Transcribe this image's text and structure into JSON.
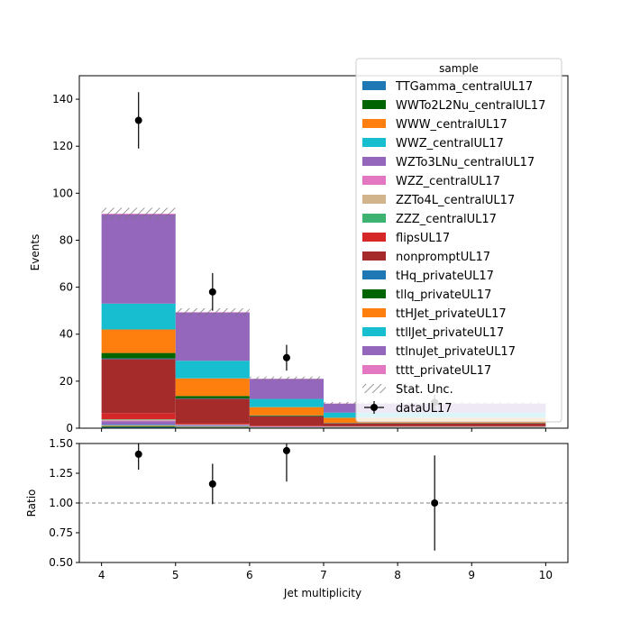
{
  "chart_data": {
    "type": "bar",
    "stacked": true,
    "xlabel": "Jet multiplicity",
    "ylabel": "Events",
    "ratio_ylabel": "Ratio",
    "xlim": [
      3.7,
      10.3
    ],
    "ylim": [
      0,
      150
    ],
    "ratio_ylim": [
      0.5,
      1.5
    ],
    "xticks": [
      "4",
      "5",
      "6",
      "7",
      "8",
      "9",
      "10"
    ],
    "yticks": [
      "0",
      "20",
      "40",
      "60",
      "80",
      "100",
      "120",
      "140"
    ],
    "ratio_yticks": [
      "0.50",
      "0.75",
      "1.00",
      "1.25",
      "1.50"
    ],
    "bin_edges": [
      4,
      5,
      6,
      7,
      10
    ],
    "legend_title": "sample",
    "legend_position": "top-right",
    "series": [
      {
        "name": "TTGamma_centralUL17",
        "color": "#1f77b4",
        "values": [
          0.5,
          0.3,
          0.1,
          0.1
        ]
      },
      {
        "name": "WWTo2L2Nu_centralUL17",
        "color": "#006400",
        "values": [
          0.3,
          0.2,
          0.1,
          0.1
        ]
      },
      {
        "name": "WWW_centralUL17",
        "color": "#ff7f0e",
        "values": [
          0.3,
          0.2,
          0.1,
          0.1
        ]
      },
      {
        "name": "WWZ_centralUL17",
        "color": "#17becf",
        "values": [
          0.3,
          0.2,
          0.1,
          0.1
        ]
      },
      {
        "name": "WZTo3LNu_centralUL17",
        "color": "#9467bd",
        "values": [
          1.6,
          0.4,
          0.2,
          0.1
        ]
      },
      {
        "name": "WZZ_centralUL17",
        "color": "#e377c2",
        "values": [
          0.3,
          0.1,
          0.1,
          0.1
        ]
      },
      {
        "name": "ZZTo4L_centralUL17",
        "color": "#d2b48c",
        "values": [
          0.3,
          0.1,
          0.1,
          0.1
        ]
      },
      {
        "name": "ZZZ_centralUL17",
        "color": "#3cb371",
        "values": [
          0.2,
          0.1,
          0.05,
          0.05
        ]
      },
      {
        "name": "flipsUL17",
        "color": "#d62728",
        "values": [
          2.6,
          0.5,
          0.3,
          0.1
        ]
      },
      {
        "name": "nonpromptUL17",
        "color": "#a52a2a",
        "values": [
          23,
          10.4,
          3.9,
          1.2
        ]
      },
      {
        "name": "tHq_privateUL17",
        "color": "#1f77b4",
        "values": [
          0.3,
          0.2,
          0.1,
          0.1
        ]
      },
      {
        "name": "tllq_privateUL17",
        "color": "#006400",
        "values": [
          2.3,
          1.0,
          0.3,
          0.1
        ]
      },
      {
        "name": "ttHJet_privateUL17",
        "color": "#ff7f0e",
        "values": [
          10,
          7.5,
          3.5,
          2.2
        ]
      },
      {
        "name": "ttllJet_privateUL17",
        "color": "#17becf",
        "values": [
          11,
          7.5,
          3.5,
          2.2
        ]
      },
      {
        "name": "ttlnuJet_privateUL17",
        "color": "#9467bd",
        "values": [
          38,
          20.5,
          8.5,
          3.8
        ]
      },
      {
        "name": "tttt_privateUL17",
        "color": "#e377c2",
        "values": [
          0.3,
          0.2,
          0.1,
          0.1
        ]
      }
    ],
    "stat_unc_label": "Stat. Unc.",
    "stat_unc": [
      2.5,
      1.6,
      0.9,
      0.6
    ],
    "data_series": {
      "name": "dataUL17",
      "x": [
        4.5,
        5.5,
        6.5,
        8.5
      ],
      "y": [
        131,
        58,
        30,
        11
      ],
      "yerr": [
        12,
        8,
        5.5,
        3.3
      ]
    },
    "ratio": {
      "x": [
        4.5,
        5.5,
        6.5,
        8.5
      ],
      "y": [
        1.41,
        1.16,
        1.44,
        1.0
      ],
      "yerr": [
        0.13,
        0.17,
        0.26,
        0.4
      ],
      "reference_line": 1.0
    }
  }
}
